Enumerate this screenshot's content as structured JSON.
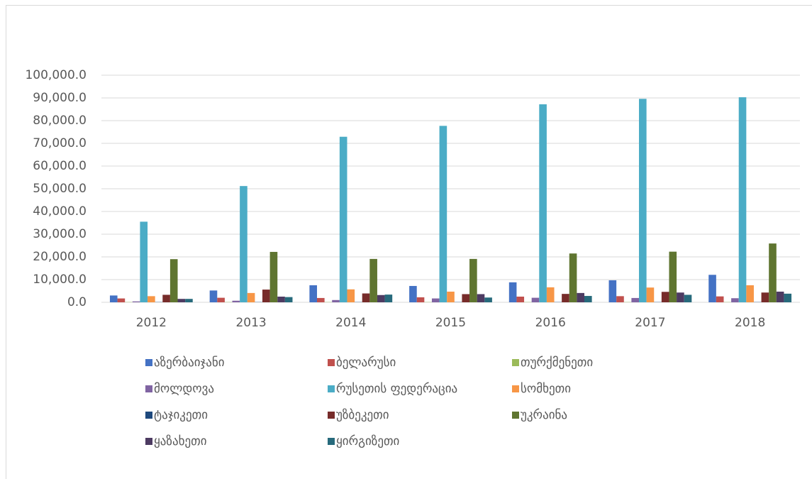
{
  "chart_data": {
    "type": "bar",
    "categories": [
      "2012",
      "2013",
      "2014",
      "2015",
      "2016",
      "2017",
      "2018"
    ],
    "series": [
      {
        "name": "აზერბაიჯანი",
        "color": "#4472c4",
        "values": [
          3000,
          5200,
          7500,
          7200,
          8800,
          9700,
          12100
        ]
      },
      {
        "name": "ბელარუსი",
        "color": "#c0504d",
        "values": [
          1700,
          2000,
          1900,
          2200,
          2500,
          2700,
          2600
        ]
      },
      {
        "name": "თურქმენეთი",
        "color": "#9bbb59",
        "values": [
          100,
          100,
          100,
          100,
          100,
          100,
          100
        ]
      },
      {
        "name": "მოლდოვა",
        "color": "#8064a2",
        "values": [
          400,
          700,
          1000,
          1700,
          2000,
          1900,
          1800
        ]
      },
      {
        "name": "რუსეთის ფედერაცია",
        "color": "#4bacc6",
        "values": [
          35500,
          51200,
          72900,
          77700,
          87200,
          89600,
          90300
        ]
      },
      {
        "name": "სომხეთი",
        "color": "#f79646",
        "values": [
          2700,
          4100,
          5700,
          4700,
          6600,
          6500,
          7500
        ]
      },
      {
        "name": "ტაჯიკეთი",
        "color": "#1f497d",
        "values": [
          100,
          100,
          100,
          100,
          100,
          100,
          100
        ]
      },
      {
        "name": "უზბეკეთი",
        "color": "#772c2a",
        "values": [
          3300,
          5600,
          3900,
          3600,
          3700,
          4600,
          4300
        ]
      },
      {
        "name": "უკრაინა",
        "color": "#5f7530",
        "values": [
          19000,
          22200,
          19100,
          19100,
          21500,
          22300,
          25900
        ]
      },
      {
        "name": "ყაზახეთი",
        "color": "#4d3b62",
        "values": [
          1500,
          2500,
          3200,
          3600,
          4100,
          4300,
          4700
        ]
      },
      {
        "name": "ყირგიზეთი",
        "color": "#276a7c",
        "values": [
          1500,
          2300,
          3400,
          2100,
          2800,
          3300,
          3800
        ]
      }
    ],
    "ylim": [
      0,
      100000
    ],
    "yticks": [
      {
        "value": 0,
        "label": "0.0"
      },
      {
        "value": 10000,
        "label": "10,000.0"
      },
      {
        "value": 20000,
        "label": "20,000.0"
      },
      {
        "value": 30000,
        "label": "30,000.0"
      },
      {
        "value": 40000,
        "label": "40,000.0"
      },
      {
        "value": 50000,
        "label": "50,000.0"
      },
      {
        "value": 60000,
        "label": "60,000.0"
      },
      {
        "value": 70000,
        "label": "70,000.0"
      },
      {
        "value": 80000,
        "label": "80,000.0"
      },
      {
        "value": 90000,
        "label": "90,000.0"
      },
      {
        "value": 100000,
        "label": "100,000.0"
      }
    ],
    "grid": true
  }
}
